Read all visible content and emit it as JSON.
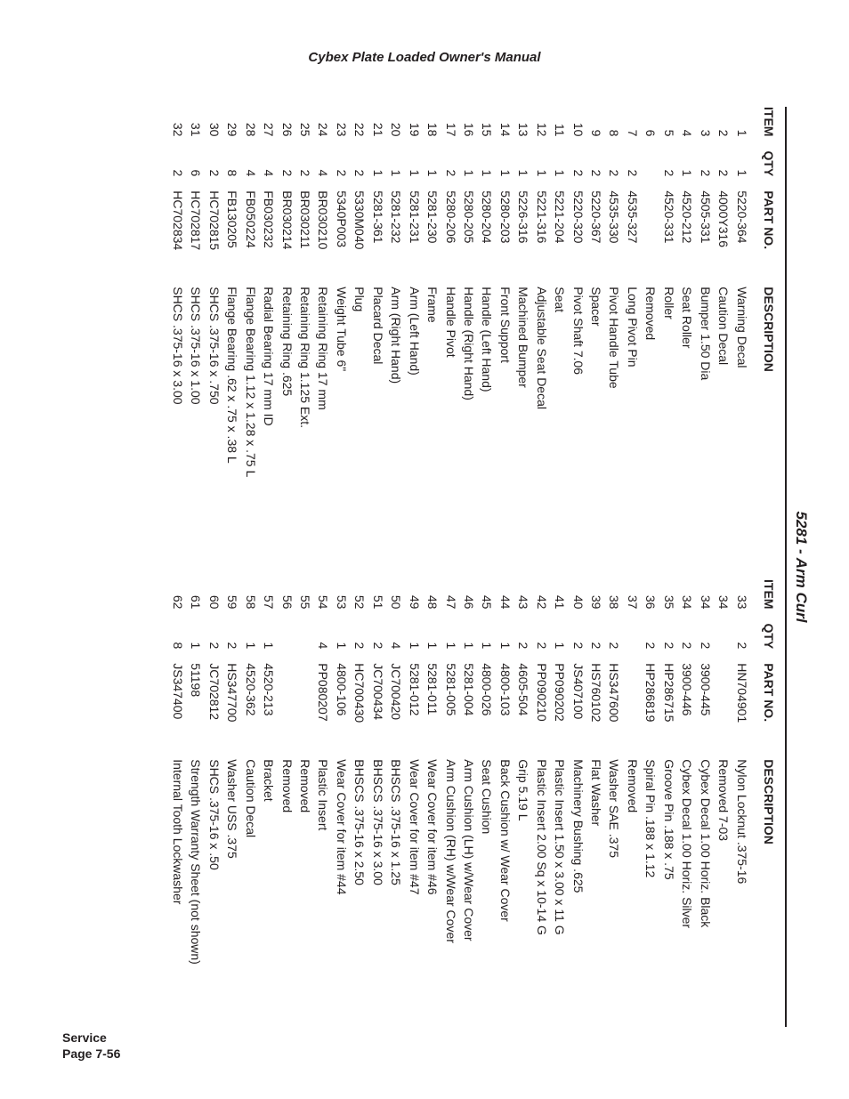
{
  "doc_title": "Cybex Plate Loaded Owner's Manual",
  "table_title": "5281 - Arm Curl",
  "corner_line1": "Service",
  "corner_line2": "Page 7-56",
  "headers": {
    "item": "ITEM",
    "qty": "QTY",
    "pn": "PART NO.",
    "desc": "DESCRIPTION"
  },
  "left": [
    {
      "item": "1",
      "qty": "1",
      "pn": "5220-364",
      "desc": "Warning Decal"
    },
    {
      "item": "2",
      "qty": "2",
      "pn": "4000Y316",
      "desc": "Caution Decal"
    },
    {
      "item": "3",
      "qty": "2",
      "pn": "4505-331",
      "desc": "Bumper 1.50 Dia"
    },
    {
      "item": "4",
      "qty": "1",
      "pn": "4520-212",
      "desc": "Seat Roller"
    },
    {
      "item": "5",
      "qty": "2",
      "pn": "4520-331",
      "desc": "Roller"
    },
    {
      "item": "6",
      "qty": "",
      "pn": "",
      "desc": "Removed"
    },
    {
      "item": "7",
      "qty": "2",
      "pn": "4535-327",
      "desc": "Long Pivot Pin"
    },
    {
      "item": "8",
      "qty": "2",
      "pn": "4535-330",
      "desc": "Pivot Handle Tube"
    },
    {
      "item": "9",
      "qty": "2",
      "pn": "5220-367",
      "desc": "Spacer"
    },
    {
      "item": "10",
      "qty": "2",
      "pn": "5220-320",
      "desc": "Pivot Shaft 7.06"
    },
    {
      "item": "11",
      "qty": "1",
      "pn": "5221-204",
      "desc": "Seat"
    },
    {
      "item": "12",
      "qty": "1",
      "pn": "5221-316",
      "desc": "Adjustable Seat Decal"
    },
    {
      "item": "13",
      "qty": "1",
      "pn": "5226-316",
      "desc": "Machined Bumper"
    },
    {
      "item": "14",
      "qty": "1",
      "pn": "5280-203",
      "desc": "Front Support"
    },
    {
      "item": "15",
      "qty": "1",
      "pn": "5280-204",
      "desc": "Handle (Left Hand)"
    },
    {
      "item": "16",
      "qty": "1",
      "pn": "5280-205",
      "desc": "Handle (Right Hand)"
    },
    {
      "item": "17",
      "qty": "2",
      "pn": "5280-206",
      "desc": "Handle Pivot"
    },
    {
      "item": "18",
      "qty": "1",
      "pn": "5281-230",
      "desc": "Frame"
    },
    {
      "item": "19",
      "qty": "1",
      "pn": "5281-231",
      "desc": "Arm (Left Hand)"
    },
    {
      "item": "20",
      "qty": "1",
      "pn": "5281-232",
      "desc": "Arm (Right Hand)"
    },
    {
      "item": "21",
      "qty": "1",
      "pn": "5281-361",
      "desc": "Placard Decal"
    },
    {
      "item": "22",
      "qty": "2",
      "pn": "5330M040",
      "desc": "Plug"
    },
    {
      "item": "23",
      "qty": "2",
      "pn": "5340P003",
      "desc": "Weight Tube 6\""
    },
    {
      "item": "24",
      "qty": "4",
      "pn": "BR030210",
      "desc": "Retaining Ring 17 mm"
    },
    {
      "item": "25",
      "qty": "2",
      "pn": "BR030211",
      "desc": "Retaining Ring 1.125 Ext."
    },
    {
      "item": "26",
      "qty": "2",
      "pn": "BR030214",
      "desc": "Retaining Ring .625"
    },
    {
      "item": "27",
      "qty": "4",
      "pn": "FB030232",
      "desc": "Radial Bearing 17 mm ID"
    },
    {
      "item": "28",
      "qty": "4",
      "pn": "FB050224",
      "desc": "Flange Bearing 1.12 x 1.28 x .75 L"
    },
    {
      "item": "29",
      "qty": "8",
      "pn": "FB130205",
      "desc": "Flange Bearing .62 x .75 x .38 L"
    },
    {
      "item": "30",
      "qty": "2",
      "pn": "HC702815",
      "desc": "SHCS .375-16 x .750"
    },
    {
      "item": "31",
      "qty": "6",
      "pn": "HC702817",
      "desc": "SHCS .375-16 x 1.00"
    },
    {
      "item": "32",
      "qty": "2",
      "pn": "HC702834",
      "desc": "SHCS .375-16 x 3.00"
    }
  ],
  "right": [
    {
      "item": "33",
      "qty": "2",
      "pn": "HN704901",
      "desc": "Nylon Locknut .375-16"
    },
    {
      "item": "34",
      "qty": "",
      "pn": "",
      "desc": "Removed 7-03"
    },
    {
      "item": "34",
      "qty": "2",
      "pn": "3900-445",
      "desc": "Cybex Decal 1.00 Horiz. Black"
    },
    {
      "item": "34",
      "qty": "2",
      "pn": "3900-446",
      "desc": "Cybex Decal 1.00 Horiz. Silver"
    },
    {
      "item": "35",
      "qty": "2",
      "pn": "HP286715",
      "desc": "Groove Pin .188 x .75"
    },
    {
      "item": "36",
      "qty": "2",
      "pn": "HP286819",
      "desc": "Spiral Pin .188 x 1.12"
    },
    {
      "item": "37",
      "qty": "",
      "pn": "",
      "desc": "Removed"
    },
    {
      "item": "38",
      "qty": "2",
      "pn": "HS347600",
      "desc": "Washer SAE .375"
    },
    {
      "item": "39",
      "qty": "2",
      "pn": "HS760102",
      "desc": "Flat Washer"
    },
    {
      "item": "40",
      "qty": "2",
      "pn": "JS407100",
      "desc": "Machinery Bushing .625"
    },
    {
      "item": "41",
      "qty": "1",
      "pn": "PP090202",
      "desc": "Plastic Insert 1.50 x 3.00 x 11 G"
    },
    {
      "item": "42",
      "qty": "2",
      "pn": "PP090210",
      "desc": "Plastic Insert 2.00 Sq x 10-14 G"
    },
    {
      "item": "43",
      "qty": "2",
      "pn": "4605-504",
      "desc": "Grip 5.19 L"
    },
    {
      "item": "44",
      "qty": "1",
      "pn": "4800-103",
      "desc": "Back Cushion w/ Wear Cover"
    },
    {
      "item": "45",
      "qty": "1",
      "pn": "4800-026",
      "desc": "Seat Cushion"
    },
    {
      "item": "46",
      "qty": "1",
      "pn": "5281-004",
      "desc": "Arm Cushion (LH) w/Wear Cover"
    },
    {
      "item": "47",
      "qty": "1",
      "pn": "5281-005",
      "desc": "Arm Cushion (RH) w/Wear Cover"
    },
    {
      "item": "48",
      "qty": "1",
      "pn": "5281-011",
      "desc": "Wear Cover for item #46"
    },
    {
      "item": "49",
      "qty": "1",
      "pn": "5281-012",
      "desc": "Wear Cover for item #47"
    },
    {
      "item": "50",
      "qty": "4",
      "pn": "JC700420",
      "desc": "BHSCS .375-16 x 1.25"
    },
    {
      "item": "51",
      "qty": "2",
      "pn": "JC700434",
      "desc": "BHSCS .375-16 x 3.00"
    },
    {
      "item": "52",
      "qty": "2",
      "pn": "HC700430",
      "desc": "BHSCS .375-16 x 2.50"
    },
    {
      "item": "53",
      "qty": "1",
      "pn": "4800-106",
      "desc": "Wear Cover for item #44"
    },
    {
      "item": "54",
      "qty": "4",
      "pn": "PP080207",
      "desc": "Plastic Insert"
    },
    {
      "item": "55",
      "qty": "",
      "pn": "",
      "desc": "Removed"
    },
    {
      "item": "56",
      "qty": "",
      "pn": "",
      "desc": "Removed"
    },
    {
      "item": "57",
      "qty": "1",
      "pn": "4520-213",
      "desc": "Bracket"
    },
    {
      "item": "58",
      "qty": "1",
      "pn": "4520-362",
      "desc": "Caution Decal"
    },
    {
      "item": "59",
      "qty": "2",
      "pn": "HS347700",
      "desc": "Washer USS .375"
    },
    {
      "item": "60",
      "qty": "2",
      "pn": "JC702812",
      "desc": "SHCS .375-16 x .50"
    },
    {
      "item": "61",
      "qty": "1",
      "pn": "51198",
      "desc": "Strength Warranty Sheet (not shown)"
    },
    {
      "item": "62",
      "qty": "8",
      "pn": "JS347400",
      "desc": "Internal Tooth Lockwasher"
    }
  ]
}
